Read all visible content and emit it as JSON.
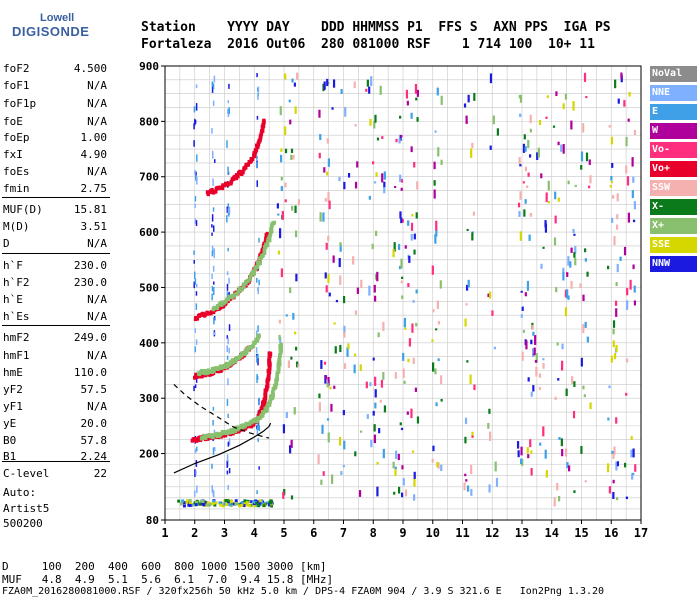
{
  "logo": {
    "line1": "Lowell",
    "line2": "DIGISONDE"
  },
  "header": {
    "labels": "Station    YYYY DAY    DDD HHMMSS P1  FFS S  AXN PPS  IGA PS",
    "values": "Fortaleza  2016 Out06  280 081000 RSF    1 714 100  10+ 11"
  },
  "params": [
    {
      "name": "foF2",
      "value": "4.500"
    },
    {
      "name": "foF1",
      "value": "N/A"
    },
    {
      "name": "foF1p",
      "value": "N/A"
    },
    {
      "name": "foE",
      "value": "N/A"
    },
    {
      "name": "foEp",
      "value": "1.00"
    },
    {
      "name": "fxI",
      "value": "4.90"
    },
    {
      "name": "foEs",
      "value": "N/A"
    },
    {
      "name": "fmin",
      "value": "2.75"
    },
    {
      "name": "MUF(D)",
      "value": "15.81"
    },
    {
      "name": "M(D)",
      "value": "3.51"
    },
    {
      "name": "D",
      "value": "N/A"
    },
    {
      "name": "h`F",
      "value": "230.0"
    },
    {
      "name": "h`F2",
      "value": "230.0"
    },
    {
      "name": "h`E",
      "value": "N/A"
    },
    {
      "name": "h`Es",
      "value": "N/A"
    },
    {
      "name": "hmF2",
      "value": "249.0"
    },
    {
      "name": "hmF1",
      "value": "N/A"
    },
    {
      "name": "hmE",
      "value": "110.0"
    },
    {
      "name": "yF2",
      "value": "57.5"
    },
    {
      "name": "yF1",
      "value": "N/A"
    },
    {
      "name": "yE",
      "value": "20.0"
    },
    {
      "name": "B0",
      "value": "57.8"
    },
    {
      "name": "B1",
      "value": "2.24"
    },
    {
      "name": "C-level",
      "value": "22"
    }
  ],
  "auto": {
    "line1": "Auto:",
    "line2": "Artist5",
    "line3": "500200"
  },
  "legend": [
    {
      "label": "NoVal",
      "color": "#8c8c8c"
    },
    {
      "label": "NNE",
      "color": "#7fb0ff"
    },
    {
      "label": "E",
      "color": "#3fa0e8"
    },
    {
      "label": "W",
      "color": "#b0009c"
    },
    {
      "label": "Vo-",
      "color": "#ff2e7e"
    },
    {
      "label": "Vo+",
      "color": "#e8002a"
    },
    {
      "label": "SSW",
      "color": "#f5b0b0"
    },
    {
      "label": "X-",
      "color": "#0b7a1a"
    },
    {
      "label": "X+",
      "color": "#88c070"
    },
    {
      "label": "SSE",
      "color": "#d6d600"
    },
    {
      "label": "NNW",
      "color": "#1a1ae0"
    }
  ],
  "bottom_table": {
    "d_row": "D     100  200  400  600  800 1000 1500 3000 [km]",
    "muf_row": "MUF   4.8  4.9  5.1  5.6  6.1  7.0  9.4 15.8 [MHz]"
  },
  "footer": "FZA0M_2016280081000.RSF / 320fx256h 50 kHz 5.0 km / DPS-4 FZA0M 904 / 3.9 S 321.6 E   Ion2Png 1.3.20",
  "chart_data": {
    "type": "scatter",
    "x_ticks": [
      1,
      2,
      3,
      4,
      5,
      6,
      7,
      8,
      9,
      10,
      11,
      12,
      13,
      14,
      15,
      16,
      17
    ],
    "y_ticks": [
      80,
      200,
      300,
      400,
      500,
      600,
      700,
      800,
      900
    ],
    "xlim": [
      1,
      17
    ],
    "ylim": [
      80,
      900
    ],
    "grid": true,
    "traces": [
      {
        "name": "O-trace F2",
        "color": "#e8002a",
        "points": [
          [
            1.9,
            224
          ],
          [
            2.3,
            228
          ],
          [
            2.8,
            232
          ],
          [
            3.2,
            238
          ],
          [
            3.6,
            245
          ],
          [
            3.9,
            252
          ],
          [
            4.1,
            262
          ],
          [
            4.25,
            280
          ],
          [
            4.35,
            300
          ],
          [
            4.45,
            330
          ],
          [
            4.5,
            360
          ],
          [
            4.52,
            385
          ]
        ]
      },
      {
        "name": "X-trace F2",
        "color": "#88c070",
        "points": [
          [
            2.2,
            228
          ],
          [
            2.7,
            233
          ],
          [
            3.2,
            240
          ],
          [
            3.7,
            250
          ],
          [
            4.1,
            262
          ],
          [
            4.4,
            280
          ],
          [
            4.6,
            305
          ],
          [
            4.75,
            335
          ],
          [
            4.85,
            370
          ],
          [
            4.9,
            400
          ]
        ]
      },
      {
        "name": "O-trace 2nd hop",
        "color": "#e8002a",
        "points": [
          [
            2.0,
            445
          ],
          [
            2.5,
            455
          ],
          [
            3.0,
            470
          ],
          [
            3.4,
            490
          ],
          [
            3.8,
            512
          ],
          [
            4.1,
            540
          ],
          [
            4.3,
            570
          ],
          [
            4.45,
            600
          ]
        ]
      },
      {
        "name": "X-trace 2nd hop",
        "color": "#88c070",
        "points": [
          [
            2.6,
            460
          ],
          [
            3.1,
            478
          ],
          [
            3.6,
            500
          ],
          [
            4.0,
            530
          ],
          [
            4.3,
            560
          ],
          [
            4.5,
            590
          ],
          [
            4.65,
            620
          ]
        ]
      },
      {
        "name": "O-trace 3rd hop",
        "color": "#e8002a",
        "points": [
          [
            2.4,
            670
          ],
          [
            2.9,
            680
          ],
          [
            3.3,
            695
          ],
          [
            3.7,
            715
          ],
          [
            4.0,
            740
          ],
          [
            4.2,
            770
          ],
          [
            4.35,
            805
          ]
        ]
      },
      {
        "name": "O-trace mid",
        "color": "#e8002a",
        "points": [
          [
            2.0,
            340
          ],
          [
            2.4,
            343
          ],
          [
            2.8,
            350
          ],
          [
            3.2,
            362
          ],
          [
            3.6,
            378
          ],
          [
            3.9,
            395
          ]
        ]
      },
      {
        "name": "X-trace mid",
        "color": "#88c070",
        "points": [
          [
            2.1,
            345
          ],
          [
            2.6,
            350
          ],
          [
            3.1,
            360
          ],
          [
            3.5,
            375
          ],
          [
            3.9,
            392
          ],
          [
            4.2,
            415
          ]
        ]
      }
    ],
    "profile_solid": [
      [
        1.3,
        165
      ],
      [
        2.0,
        182
      ],
      [
        2.8,
        198
      ],
      [
        3.5,
        215
      ],
      [
        4.0,
        230
      ],
      [
        4.3,
        240
      ],
      [
        4.5,
        249
      ],
      [
        4.55,
        255
      ]
    ],
    "profile_dashed": [
      [
        1.3,
        325
      ],
      [
        1.7,
        305
      ],
      [
        2.2,
        285
      ],
      [
        2.8,
        265
      ],
      [
        3.3,
        248
      ],
      [
        3.8,
        238
      ],
      [
        4.2,
        232
      ],
      [
        4.5,
        228
      ]
    ]
  }
}
